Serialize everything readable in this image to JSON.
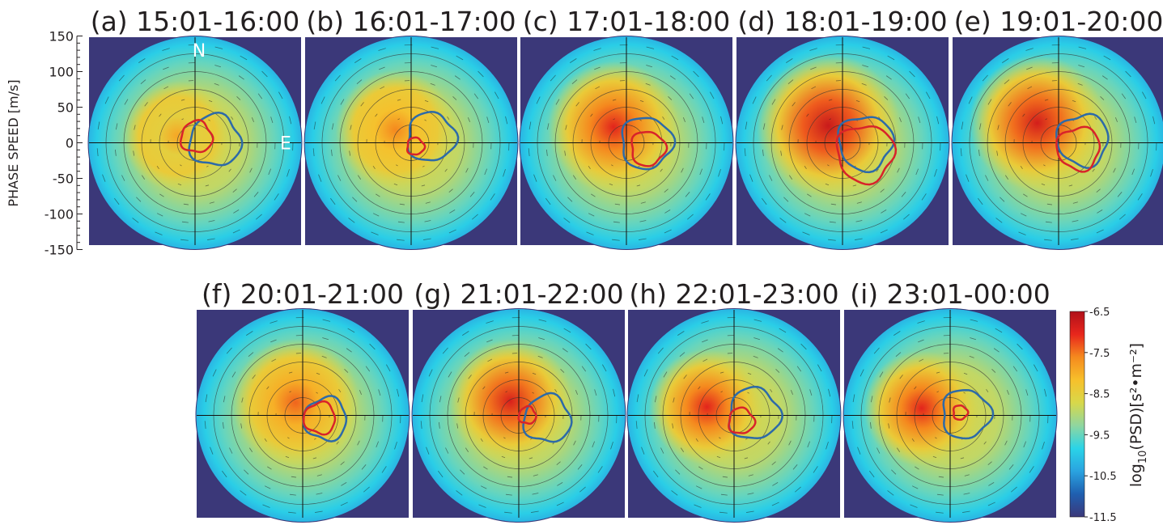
{
  "chart_data": {
    "type": "heatmap",
    "description_units": {
      "ylabel": "PHASE SPEED [m/s]",
      "colorbar_label_main": "log",
      "colorbar_label_sub": "10",
      "colorbar_label_rest": "(PSD)[s²•m⁻²]"
    },
    "ylim": [
      -150,
      150
    ],
    "yticks": [
      "150",
      "100",
      "50",
      "0",
      "-50",
      "-100",
      "-150"
    ],
    "direction_labels": {
      "north": "N",
      "east": "E"
    },
    "colorbar": {
      "range": [
        -11.5,
        -6.5
      ],
      "ticks": [
        "-6.5",
        "-7.5",
        "-8.5",
        "-9.5",
        "-10.5",
        "-11.5"
      ],
      "colors": [
        "#3b3879",
        "#1f5fb0",
        "#2aa3e0",
        "#2ad4e8",
        "#8fd6a0",
        "#d8d84a",
        "#f7c02b",
        "#f58a1e",
        "#e8261c",
        "#b0101a"
      ]
    },
    "panels": [
      {
        "title": "(a) 15:01-16:00",
        "blob": {
          "x": -25,
          "y": 10,
          "r": 55,
          "peak": 0.72
        },
        "blue": {
          "cx": 28,
          "cy": 3,
          "r": 36
        },
        "red": {
          "cx": 2,
          "cy": 8,
          "r": 22
        }
      },
      {
        "title": "(b) 16:01-17:00",
        "blob": {
          "x": -22,
          "y": 18,
          "r": 60,
          "peak": 0.78
        },
        "blue": {
          "cx": 28,
          "cy": 8,
          "r": 34
        },
        "red": {
          "cx": 6,
          "cy": -5,
          "r": 12
        }
      },
      {
        "title": "(c) 17:01-18:00",
        "blob": {
          "x": -18,
          "y": 22,
          "r": 66,
          "peak": 0.9
        },
        "blue": {
          "cx": 28,
          "cy": 0,
          "r": 36
        },
        "red": {
          "cx": 30,
          "cy": -8,
          "r": 24
        }
      },
      {
        "title": "(d) 18:01-19:00",
        "blob": {
          "x": -20,
          "y": 24,
          "r": 72,
          "peak": 0.95
        },
        "blue": {
          "cx": 32,
          "cy": 0,
          "r": 38
        },
        "red": {
          "cx": 32,
          "cy": -15,
          "r": 40
        }
      },
      {
        "title": "(e) 19:01-20:00",
        "blob": {
          "x": -30,
          "y": 28,
          "r": 68,
          "peak": 0.93
        },
        "blue": {
          "cx": 34,
          "cy": 4,
          "r": 36
        },
        "red": {
          "cx": 28,
          "cy": -8,
          "r": 30
        }
      },
      {
        "title": "(f) 20:01-21:00",
        "blob": {
          "x": -10,
          "y": 18,
          "r": 64,
          "peak": 0.82
        },
        "blue": {
          "cx": 32,
          "cy": -5,
          "r": 30
        },
        "red": {
          "cx": 24,
          "cy": -4,
          "r": 22
        }
      },
      {
        "title": "(g) 21:01-22:00",
        "blob": {
          "x": -12,
          "y": 20,
          "r": 62,
          "peak": 0.92
        },
        "blue": {
          "cx": 40,
          "cy": -5,
          "r": 33
        },
        "red": {
          "cx": 12,
          "cy": 0,
          "r": 12
        }
      },
      {
        "title": "(h) 22:01-23:00",
        "blob": {
          "x": -38,
          "y": 12,
          "r": 58,
          "peak": 0.9
        },
        "blue": {
          "cx": 28,
          "cy": 2,
          "r": 36
        },
        "red": {
          "cx": 10,
          "cy": -8,
          "r": 18
        }
      },
      {
        "title": "(i) 23:01-00:00",
        "blob": {
          "x": -40,
          "y": 10,
          "r": 58,
          "peak": 0.9
        },
        "blue": {
          "cx": 22,
          "cy": 2,
          "r": 34
        },
        "red": {
          "cx": 14,
          "cy": 4,
          "r": 10
        }
      }
    ]
  }
}
